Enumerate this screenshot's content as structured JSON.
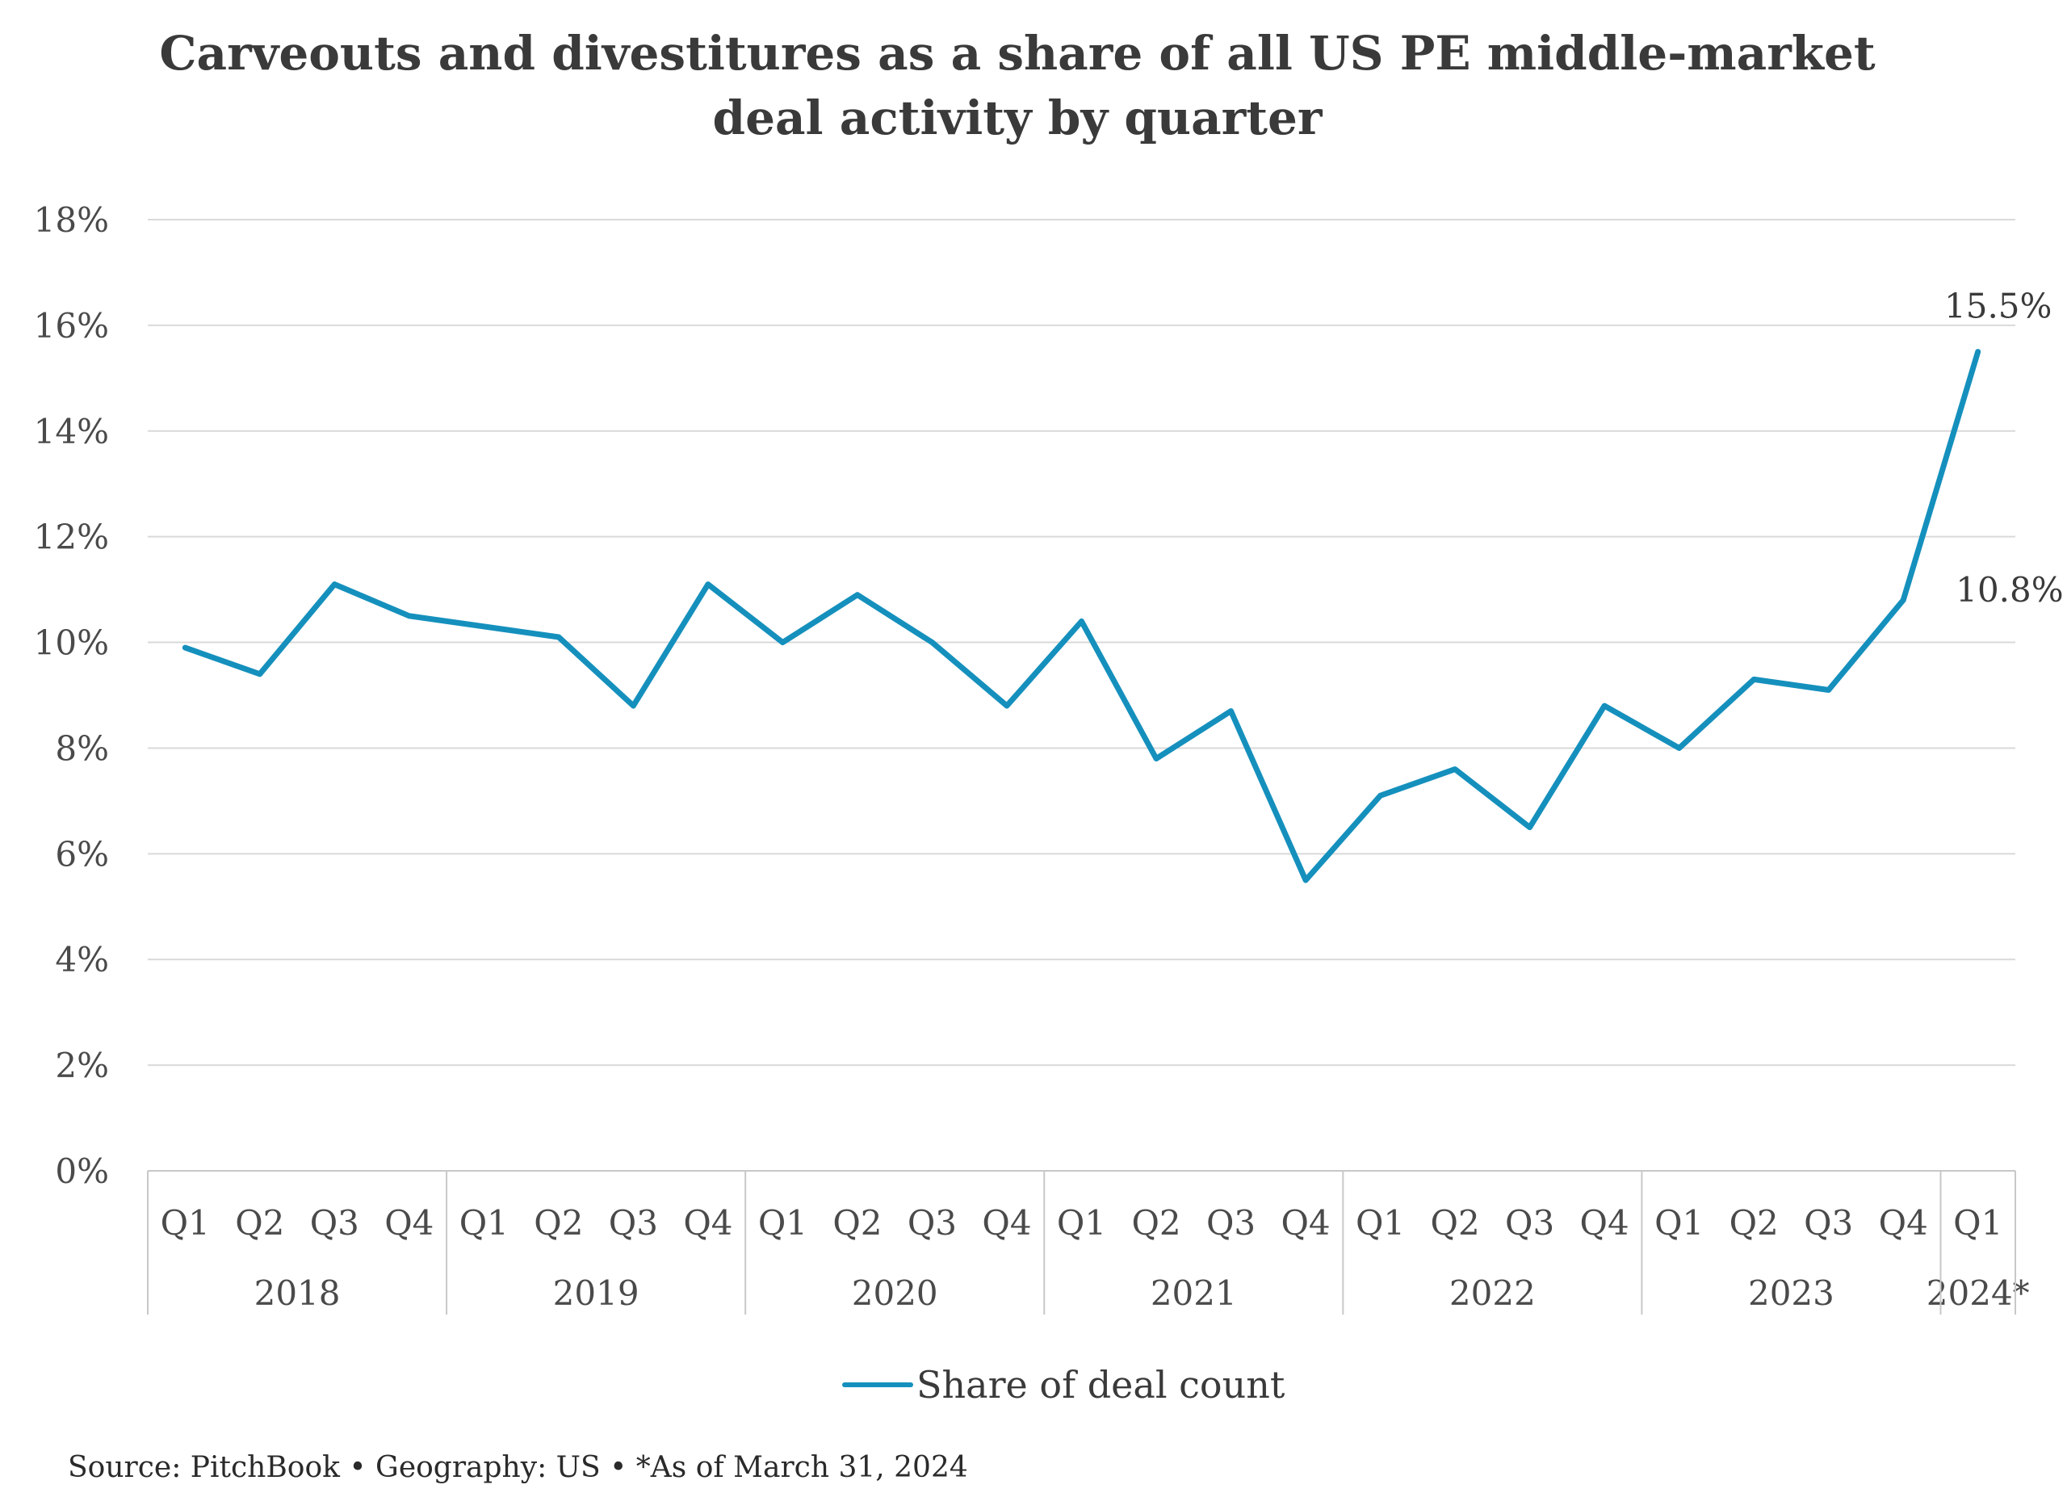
{
  "title_line1": "Carveouts and divestitures as a share of all US PE middle-market",
  "title_line2": "deal activity by quarter",
  "source": "Source: PitchBook • Geography: US • *As of March 31, 2024",
  "legend_label": "Share of deal count",
  "colors": {
    "series": "#1590bd",
    "grid": "#d9d9d9",
    "axis": "#c8c8c8",
    "text": "#3a3a3a"
  },
  "chart_data": {
    "type": "line",
    "title": "Carveouts and divestitures as a share of all US PE middle-market deal activity by quarter",
    "x_quarters": [
      "Q1",
      "Q2",
      "Q3",
      "Q4",
      "Q1",
      "Q2",
      "Q3",
      "Q4",
      "Q1",
      "Q2",
      "Q3",
      "Q4",
      "Q1",
      "Q2",
      "Q3",
      "Q4",
      "Q1",
      "Q2",
      "Q3",
      "Q4",
      "Q1",
      "Q2",
      "Q3",
      "Q4",
      "Q1"
    ],
    "year_groups": [
      {
        "label": "2018",
        "count": 4
      },
      {
        "label": "2019",
        "count": 4
      },
      {
        "label": "2020",
        "count": 4
      },
      {
        "label": "2021",
        "count": 4
      },
      {
        "label": "2022",
        "count": 4
      },
      {
        "label": "2023",
        "count": 4
      },
      {
        "label": "2024*",
        "count": 1
      }
    ],
    "series": [
      {
        "name": "Share of deal count",
        "values": [
          9.9,
          9.4,
          11.1,
          10.5,
          10.3,
          10.1,
          8.8,
          11.1,
          10.0,
          10.9,
          10.0,
          8.8,
          10.4,
          7.8,
          8.7,
          5.5,
          7.1,
          7.6,
          6.5,
          8.8,
          8.0,
          9.3,
          9.1,
          10.8,
          15.5
        ]
      }
    ],
    "y_ticks": [
      "0%",
      "2%",
      "4%",
      "6%",
      "8%",
      "10%",
      "12%",
      "14%",
      "16%",
      "18%"
    ],
    "ylim": [
      0,
      18
    ],
    "y_unit": "%",
    "data_labels": [
      {
        "index": 23,
        "text": "10.8%"
      },
      {
        "index": 24,
        "text": "15.5%"
      }
    ],
    "grid": true,
    "legend_position": "bottom"
  }
}
